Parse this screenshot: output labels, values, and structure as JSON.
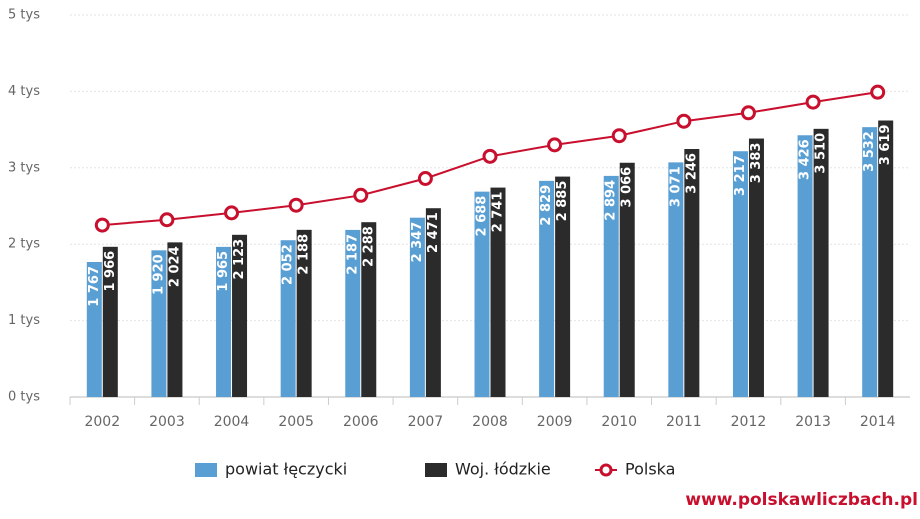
{
  "chart_data": {
    "type": "bar",
    "categories": [
      "2002",
      "2003",
      "2004",
      "2005",
      "2006",
      "2007",
      "2008",
      "2009",
      "2010",
      "2011",
      "2012",
      "2013",
      "2014"
    ],
    "series": [
      {
        "name": "powiat łęczycki",
        "color": "#5a9fd4",
        "type": "bar",
        "values": [
          1767,
          1920,
          1965,
          2052,
          2187,
          2347,
          2688,
          2829,
          2894,
          3071,
          3217,
          3426,
          3532
        ],
        "value_labels": [
          "1 767",
          "1 920",
          "1 965",
          "2 052",
          "2 187",
          "2 347",
          "2 688",
          "2 829",
          "2 894",
          "3 071",
          "3 217",
          "3 426",
          "3 532"
        ]
      },
      {
        "name": "Woj. łódzkie",
        "color": "#2b2b2b",
        "type": "bar",
        "values": [
          1966,
          2024,
          2123,
          2188,
          2288,
          2471,
          2741,
          2885,
          3066,
          3246,
          3383,
          3510,
          3619
        ],
        "value_labels": [
          "1 966",
          "2 024",
          "2 123",
          "2 188",
          "2 288",
          "2 471",
          "2 741",
          "2 885",
          "3 066",
          "3 246",
          "3 383",
          "3 510",
          "3 619"
        ]
      },
      {
        "name": "Polska",
        "color": "#c8102e",
        "type": "line",
        "values": [
          2250,
          2320,
          2410,
          2510,
          2640,
          2860,
          3150,
          3300,
          3420,
          3610,
          3720,
          3860,
          3990
        ]
      }
    ],
    "ylim": [
      0,
      5000
    ],
    "yticks": [
      {
        "value": 0,
        "label": "0 tys"
      },
      {
        "value": 1000,
        "label": "1 tys"
      },
      {
        "value": 2000,
        "label": "2 tys"
      },
      {
        "value": 3000,
        "label": "3 tys"
      },
      {
        "value": 4000,
        "label": "4 tys"
      },
      {
        "value": 5000,
        "label": "5 tys"
      }
    ],
    "grid": true,
    "legend": "bottom",
    "source": "www.polskawliczbach.pl"
  }
}
